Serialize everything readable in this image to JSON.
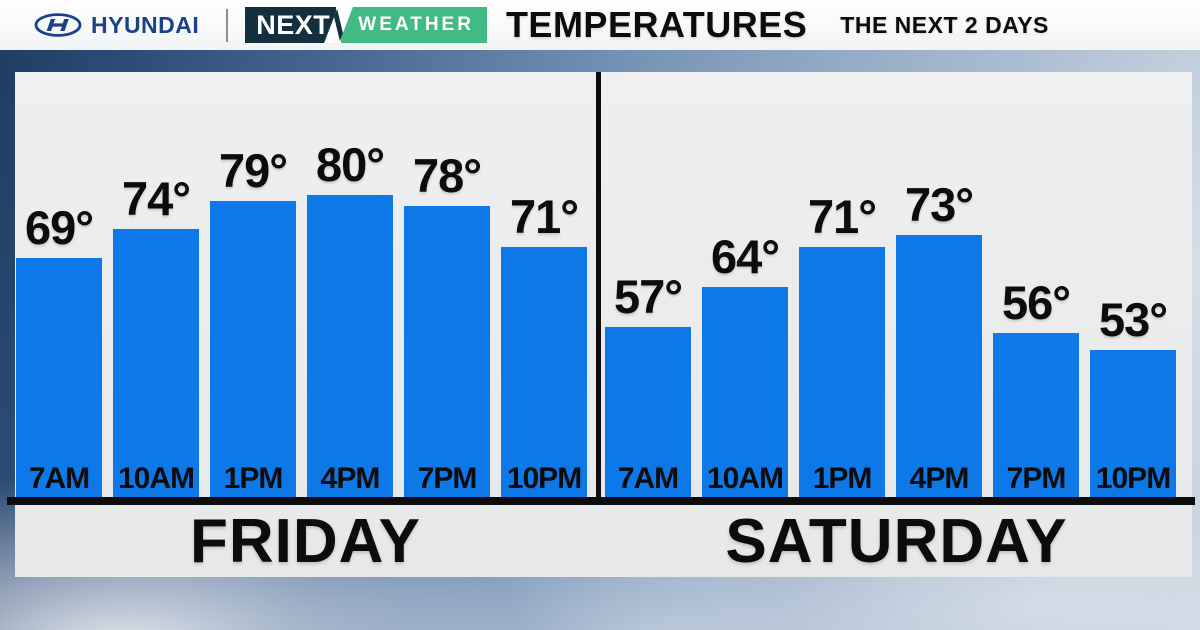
{
  "header": {
    "brand": "HYUNDAI",
    "badge": {
      "next": "NEXT",
      "weather": "WEATHER"
    },
    "title": "TEMPERATURES",
    "subtitle": "THE NEXT 2 DAYS"
  },
  "chart_data": {
    "type": "bar",
    "title": "TEMPERATURES",
    "subtitle": "THE NEXT 2 DAYS",
    "unit": "°F",
    "value_suffix": "°",
    "bar_color": "#0d79e8",
    "grid": false,
    "legend": false,
    "groups": [
      {
        "label": "FRIDAY",
        "categories": [
          "7AM",
          "10AM",
          "1PM",
          "4PM",
          "7PM",
          "10PM"
        ],
        "values": [
          69,
          74,
          79,
          80,
          78,
          71
        ]
      },
      {
        "label": "SATURDAY",
        "categories": [
          "7AM",
          "10AM",
          "1PM",
          "4PM",
          "7PM",
          "10PM"
        ],
        "values": [
          57,
          64,
          71,
          73,
          56,
          53
        ]
      }
    ]
  },
  "colors": {
    "hyundai-blue": "#1b4288",
    "badge-navy": "#142f3f",
    "badge-green": "#42ba84",
    "bar-blue": "#0d79e8",
    "panel-gray": "#e9ebed",
    "axis-black": "#0d0d0d"
  }
}
